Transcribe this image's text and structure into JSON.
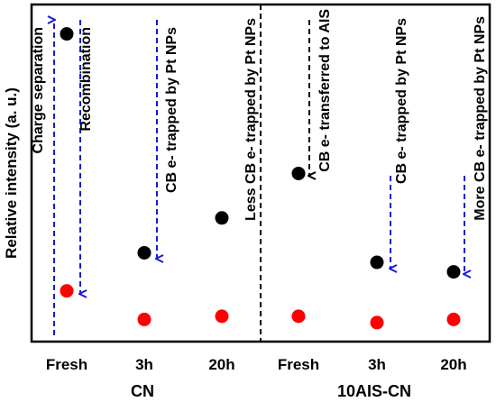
{
  "chart_data": {
    "type": "scatter",
    "ylabel": "Relative intensity (a. u.)",
    "categories": [
      "Fresh",
      "3h",
      "20h",
      "Fresh",
      "3h",
      "20h"
    ],
    "group_labels": [
      "CN",
      "10AIS-CN"
    ],
    "ylim": [
      0,
      100
    ],
    "grid": false,
    "series": [
      {
        "color": "#000000",
        "values": [
          95,
          26,
          37,
          51,
          23,
          20
        ]
      },
      {
        "color": "#ff0000",
        "values": [
          14,
          5,
          6,
          6,
          4,
          5
        ]
      }
    ],
    "annotations": [
      {
        "text": "Charge separation",
        "category_index": 0,
        "direction": "up",
        "color": "#1a1ad6"
      },
      {
        "text": "Recombination",
        "category_index": 0,
        "direction": "down",
        "color": "#1a1ad6"
      },
      {
        "text": "CB e- trapped by Pt NPs",
        "category_index": 1,
        "direction": "down",
        "color": "#1a1ad6"
      },
      {
        "text": "Less CB e- trapped by Pt NPs",
        "category_index": 2,
        "direction": "none",
        "color": "#000000"
      },
      {
        "text": "CB e- transferred to AIS",
        "category_index": 3,
        "direction": "down",
        "color": "#000000"
      },
      {
        "text": "CB e- trapped by Pt NPs",
        "category_index": 4,
        "direction": "down",
        "color": "#1a1ad6"
      },
      {
        "text": "More CB e- trapped by Pt NPs",
        "category_index": 5,
        "direction": "down",
        "color": "#1a1ad6"
      }
    ]
  }
}
